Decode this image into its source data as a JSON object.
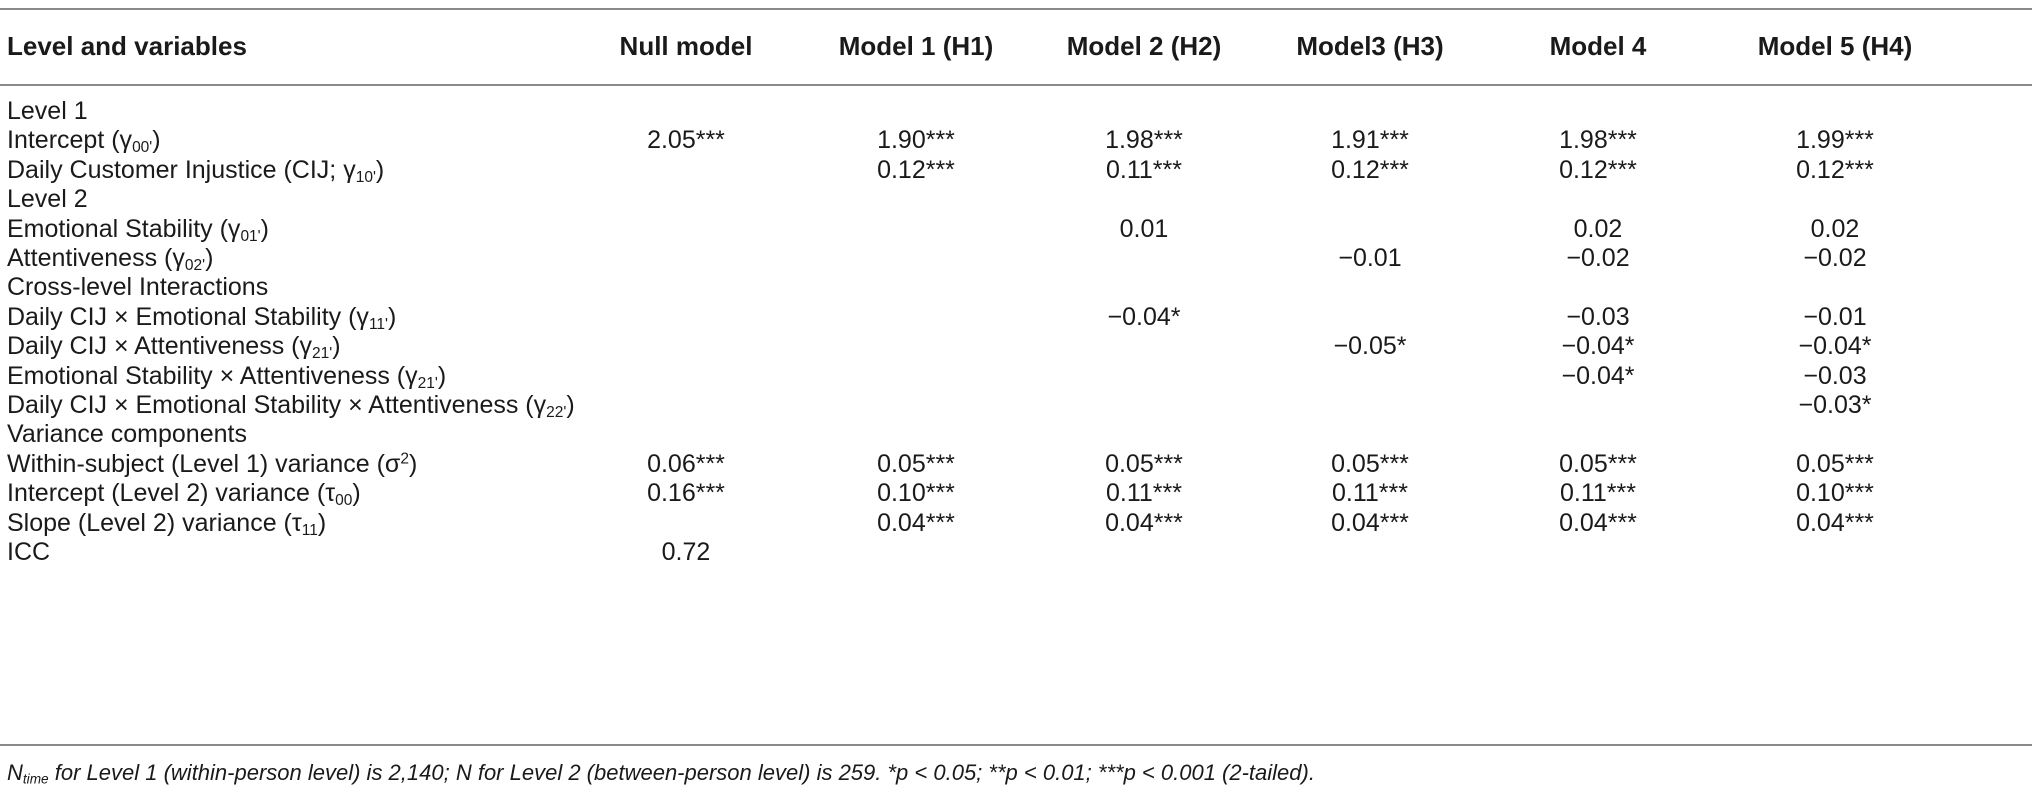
{
  "table": {
    "headers": [
      "Level and variables",
      "Null model",
      "Model 1 (H1)",
      "Model 2 (H2)",
      "Model3 (H3)",
      "Model 4",
      "Model 5 (H4)"
    ],
    "rows": [
      {
        "label": "Level 1",
        "sub": "",
        "close": "",
        "values": [
          "",
          "",
          "",
          "",
          "",
          ""
        ]
      },
      {
        "label": "Intercept (γ",
        "sub": "00'",
        "close": ")",
        "values": [
          "2.05***",
          "1.90***",
          "1.98***",
          "1.91***",
          "1.98***",
          "1.99***"
        ]
      },
      {
        "label": "Daily Customer Injustice (CIJ; γ",
        "sub": "10'",
        "close": ")",
        "values": [
          "",
          "0.12***",
          "0.11***",
          "0.12***",
          "0.12***",
          "0.12***"
        ]
      },
      {
        "label": "Level 2",
        "sub": "",
        "close": "",
        "values": [
          "",
          "",
          "",
          "",
          "",
          ""
        ]
      },
      {
        "label": "Emotional Stability (γ",
        "sub": "01'",
        "close": ")",
        "values": [
          "",
          "",
          "0.01",
          "",
          "0.02",
          "0.02"
        ]
      },
      {
        "label": "Attentiveness (γ",
        "sub": "02'",
        "close": ")",
        "values": [
          "",
          "",
          "",
          "−0.01",
          "−0.02",
          "−0.02"
        ]
      },
      {
        "label": "Cross-level Interactions",
        "sub": "",
        "close": "",
        "values": [
          "",
          "",
          "",
          "",
          "",
          ""
        ]
      },
      {
        "label": "Daily CIJ × Emotional Stability (γ",
        "sub": "11'",
        "close": ")",
        "values": [
          "",
          "",
          "−0.04*",
          "",
          "−0.03",
          "−0.01"
        ]
      },
      {
        "label": "Daily CIJ × Attentiveness (γ",
        "sub": "21'",
        "close": ")",
        "values": [
          "",
          "",
          "",
          "−0.05*",
          "−0.04*",
          "−0.04*"
        ]
      },
      {
        "label": "Emotional Stability × Attentiveness (γ",
        "sub": "21'",
        "close": ")",
        "values": [
          "",
          "",
          "",
          "",
          "−0.04*",
          "−0.03"
        ]
      },
      {
        "label": "Daily CIJ × Emotional Stability × Attentiveness (γ",
        "sub": "22'",
        "close": ")",
        "values": [
          "",
          "",
          "",
          "",
          "",
          "−0.03*"
        ]
      },
      {
        "label": "Variance components",
        "sub": "",
        "close": "",
        "values": [
          "",
          "",
          "",
          "",
          "",
          ""
        ]
      },
      {
        "label": "Within-subject (Level 1) variance (σ",
        "sup": "2",
        "close": ")",
        "values": [
          "0.06***",
          "0.05***",
          "0.05***",
          "0.05***",
          "0.05***",
          "0.05***"
        ]
      },
      {
        "label": "Intercept (Level 2) variance (τ",
        "sub": "00",
        "close": ")",
        "values": [
          "0.16***",
          "0.10***",
          "0.11***",
          "0.11***",
          "0.11***",
          "0.10***"
        ]
      },
      {
        "label": "Slope (Level 2) variance (τ",
        "sub": "11",
        "close": ")",
        "values": [
          "",
          "0.04***",
          "0.04***",
          "0.04***",
          "0.04***",
          "0.04***"
        ]
      },
      {
        "label": "ICC",
        "sub": "",
        "close": "",
        "values": [
          "0.72",
          "",
          "",
          "",
          "",
          ""
        ]
      }
    ]
  },
  "note": {
    "n": "N",
    "n_sub": "time",
    "text": " for Level 1 (within-person level) is 2,140; N for Level 2 (between-person level) is 259.  *p < 0.05; **p < 0.01; ***p < 0.001 (2-tailed)."
  }
}
